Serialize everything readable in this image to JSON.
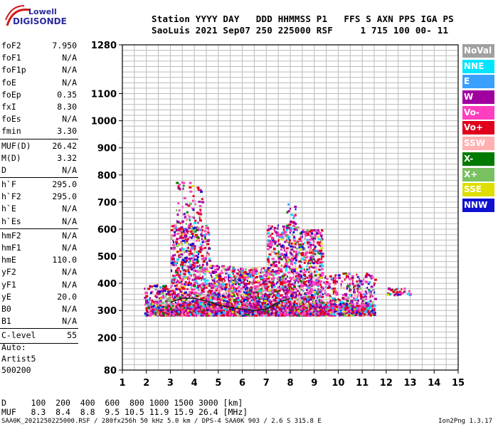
{
  "logo": {
    "line1": "Lowell",
    "line2": "DIGISONDE"
  },
  "header": {
    "row1": "Station YYYY DAY   DDD HHMMSS P1   FFS S AXN PPS IGA PS",
    "row2": "SaoLuis 2021 Sep07 250 225000 RSF     1 715 100 00- 11"
  },
  "params": [
    {
      "name": "foF2",
      "value": "7.950"
    },
    {
      "name": "foF1",
      "value": "N/A"
    },
    {
      "name": "foF1p",
      "value": "N/A"
    },
    {
      "name": "foE",
      "value": "N/A"
    },
    {
      "name": "foEp",
      "value": "0.35"
    },
    {
      "name": "fxI",
      "value": "8.30"
    },
    {
      "name": "foEs",
      "value": "N/A"
    },
    {
      "name": "fmin",
      "value": "3.30"
    },
    {
      "sep": true
    },
    {
      "name": "MUF(D)",
      "value": "26.42"
    },
    {
      "name": "M(D)",
      "value": "3.32"
    },
    {
      "name": "D",
      "value": "N/A"
    },
    {
      "sep": true
    },
    {
      "name": "h`F",
      "value": "295.0"
    },
    {
      "name": "h`F2",
      "value": "295.0"
    },
    {
      "name": "h`E",
      "value": "N/A"
    },
    {
      "name": "h`Es",
      "value": "N/A"
    },
    {
      "sep": true
    },
    {
      "name": "hmF2",
      "value": "N/A"
    },
    {
      "name": "hmF1",
      "value": "N/A"
    },
    {
      "name": "hmE",
      "value": "110.0"
    },
    {
      "name": "yF2",
      "value": "N/A"
    },
    {
      "name": "yF1",
      "value": "N/A"
    },
    {
      "name": "yE",
      "value": "20.0"
    },
    {
      "name": "B0",
      "value": "N/A"
    },
    {
      "name": "B1",
      "value": "N/A"
    },
    {
      "sep": true
    },
    {
      "name": "C-level",
      "value": "55"
    },
    {
      "sep": true
    }
  ],
  "auto": {
    "line1": "Auto:",
    "line2": "Artist5",
    "line3": "500200"
  },
  "footer": {
    "d_row": "D     100  200  400  600  800 1000 1500 3000 [km]",
    "muf_row": "MUF   8.3  8.4  8.8  9.5 10.5 11.9 15.9 26.4 [MHz]"
  },
  "file_info": "SAA0K_2021250225000.RSF / 280fx256h 50 kHz 5.0 km / DPS-4 SAA0K 903 / 2.6 S 315.8 E",
  "version": "Ion2Png 1.3.17",
  "legend": [
    {
      "label": "NoVal",
      "color": "#a0a0a0"
    },
    {
      "label": "NNE",
      "color": "#00e5ff"
    },
    {
      "label": "E",
      "color": "#3aa0ff"
    },
    {
      "label": "W",
      "color": "#a000a0"
    },
    {
      "label": "Vo-",
      "color": "#ff3fbf"
    },
    {
      "label": "Vo+",
      "color": "#e0001c"
    },
    {
      "label": "SSW",
      "color": "#ffb0b0"
    },
    {
      "label": "X-",
      "color": "#007a00"
    },
    {
      "label": "X+",
      "color": "#78c060"
    },
    {
      "label": "SSE",
      "color": "#dede00"
    },
    {
      "label": "NNW",
      "color": "#1010d0"
    }
  ],
  "chart_data": {
    "type": "scatter",
    "title": "",
    "xlabel": "",
    "ylabel": "",
    "xlim": [
      1,
      15
    ],
    "ylim": [
      80,
      1280
    ],
    "x_ticks": [
      1,
      2,
      3,
      4,
      5,
      6,
      7,
      8,
      9,
      10,
      11,
      12,
      13,
      14,
      15
    ],
    "y_ticks": [
      80,
      200,
      300,
      400,
      500,
      600,
      700,
      800,
      900,
      1000,
      1100,
      1280
    ],
    "trace_line": {
      "name": "virtual height trace",
      "x": [
        3.0,
        3.5,
        4.0,
        4.5,
        5.0,
        5.5,
        6.0,
        6.5,
        7.0,
        7.5,
        8.0
      ],
      "y": [
        330,
        345,
        345,
        335,
        320,
        312,
        305,
        300,
        305,
        330,
        345
      ]
    }
  }
}
